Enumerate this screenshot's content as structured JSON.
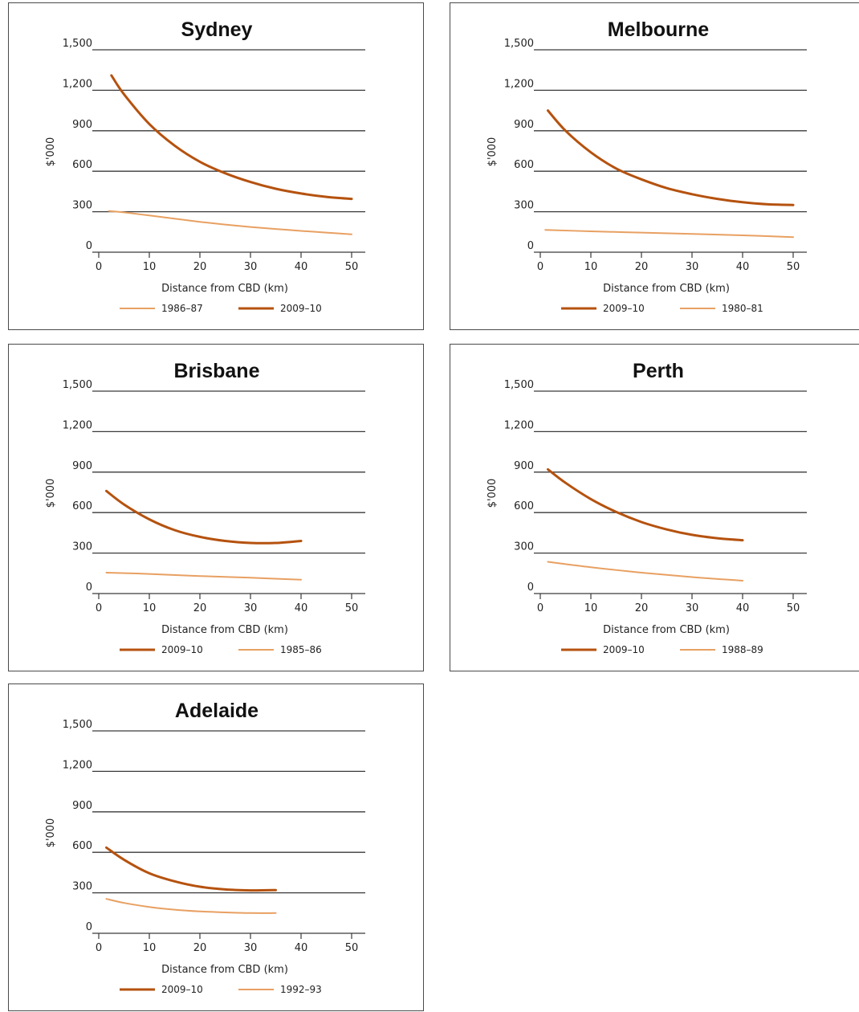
{
  "colors": {
    "dark_series": "#b5520f",
    "light_series": "#e8a062",
    "grid": "#3a3a3a"
  },
  "chart_data": [
    {
      "type": "line",
      "title": "Sydney",
      "ylabel": "$'000",
      "xlabel": "Distance from CBD (km)",
      "ylim": [
        0,
        1500
      ],
      "xlim": [
        0,
        50
      ],
      "yticks": [
        "0",
        "300",
        "600",
        "900",
        "1,200",
        "1,500"
      ],
      "xticks": [
        "0",
        "10",
        "20",
        "30",
        "40",
        "50"
      ],
      "grid": true,
      "legend_position": "bottom",
      "series": [
        {
          "name": "1986–87",
          "style": "light",
          "x": [
            2,
            5,
            10,
            15,
            20,
            25,
            30,
            35,
            40,
            45,
            50
          ],
          "y": [
            305,
            295,
            272,
            248,
            225,
            205,
            187,
            172,
            158,
            145,
            133
          ]
        },
        {
          "name": "2009–10",
          "style": "dark",
          "x": [
            2.5,
            5,
            10,
            15,
            20,
            25,
            30,
            35,
            40,
            45,
            50
          ],
          "y": [
            1310,
            1170,
            950,
            790,
            670,
            585,
            520,
            470,
            435,
            410,
            395
          ]
        }
      ]
    },
    {
      "type": "line",
      "title": "Melbourne",
      "ylabel": "$'000",
      "xlabel": "Distance from CBD (km)",
      "ylim": [
        0,
        1500
      ],
      "xlim": [
        0,
        50
      ],
      "yticks": [
        "0",
        "300",
        "600",
        "900",
        "1,200",
        "1,500"
      ],
      "xticks": [
        "0",
        "10",
        "20",
        "30",
        "40",
        "50"
      ],
      "grid": true,
      "legend_position": "bottom",
      "series": [
        {
          "name": "2009–10",
          "style": "dark",
          "x": [
            1.5,
            5,
            10,
            15,
            20,
            25,
            30,
            35,
            40,
            45,
            50
          ],
          "y": [
            1050,
            900,
            740,
            620,
            540,
            475,
            430,
            395,
            370,
            355,
            350
          ]
        },
        {
          "name": "1980–81",
          "style": "light",
          "x": [
            1,
            10,
            20,
            30,
            40,
            50
          ],
          "y": [
            165,
            155,
            145,
            135,
            125,
            112
          ]
        }
      ]
    },
    {
      "type": "line",
      "title": "Brisbane",
      "ylabel": "$'000",
      "xlabel": "Distance from CBD (km)",
      "ylim": [
        0,
        1500
      ],
      "xlim": [
        0,
        50
      ],
      "yticks": [
        "0",
        "300",
        "600",
        "900",
        "1,200",
        "1,500"
      ],
      "xticks": [
        "0",
        "10",
        "20",
        "30",
        "40",
        "50"
      ],
      "grid": true,
      "legend_position": "bottom",
      "series": [
        {
          "name": "2009–10",
          "style": "dark",
          "x": [
            1.5,
            5,
            10,
            15,
            20,
            25,
            30,
            35,
            40
          ],
          "y": [
            760,
            660,
            550,
            470,
            420,
            390,
            375,
            375,
            390
          ]
        },
        {
          "name": "1985–86",
          "style": "light",
          "x": [
            1.5,
            10,
            20,
            30,
            40
          ],
          "y": [
            155,
            145,
            130,
            117,
            103
          ]
        }
      ]
    },
    {
      "type": "line",
      "title": "Perth",
      "ylabel": "$'000",
      "xlabel": "Distance from CBD (km)",
      "ylim": [
        0,
        1500
      ],
      "xlim": [
        0,
        50
      ],
      "yticks": [
        "0",
        "300",
        "600",
        "900",
        "1,200",
        "1,500"
      ],
      "xticks": [
        "0",
        "10",
        "20",
        "30",
        "40",
        "50"
      ],
      "grid": true,
      "legend_position": "bottom",
      "series": [
        {
          "name": "2009–10",
          "style": "dark",
          "x": [
            1.5,
            5,
            10,
            15,
            20,
            25,
            30,
            35,
            40
          ],
          "y": [
            920,
            820,
            700,
            605,
            530,
            475,
            435,
            410,
            395
          ]
        },
        {
          "name": "1988–89",
          "style": "light",
          "x": [
            1.5,
            10,
            20,
            30,
            40
          ],
          "y": [
            235,
            195,
            155,
            122,
            95
          ]
        }
      ]
    },
    {
      "type": "line",
      "title": "Adelaide",
      "ylabel": "$'000",
      "xlabel": "Distance from CBD (km)",
      "ylim": [
        0,
        1500
      ],
      "xlim": [
        0,
        50
      ],
      "yticks": [
        "0",
        "300",
        "600",
        "900",
        "1,200",
        "1,500"
      ],
      "xticks": [
        "0",
        "10",
        "20",
        "30",
        "40",
        "50"
      ],
      "grid": true,
      "legend_position": "bottom",
      "series": [
        {
          "name": "2009–10",
          "style": "dark",
          "x": [
            1.5,
            5,
            10,
            15,
            20,
            25,
            30,
            35
          ],
          "y": [
            635,
            545,
            445,
            385,
            345,
            325,
            318,
            320
          ]
        },
        {
          "name": "1992–93",
          "style": "light",
          "x": [
            1.5,
            5,
            10,
            15,
            20,
            25,
            30,
            35
          ],
          "y": [
            255,
            225,
            195,
            175,
            162,
            155,
            150,
            150
          ]
        }
      ]
    }
  ]
}
